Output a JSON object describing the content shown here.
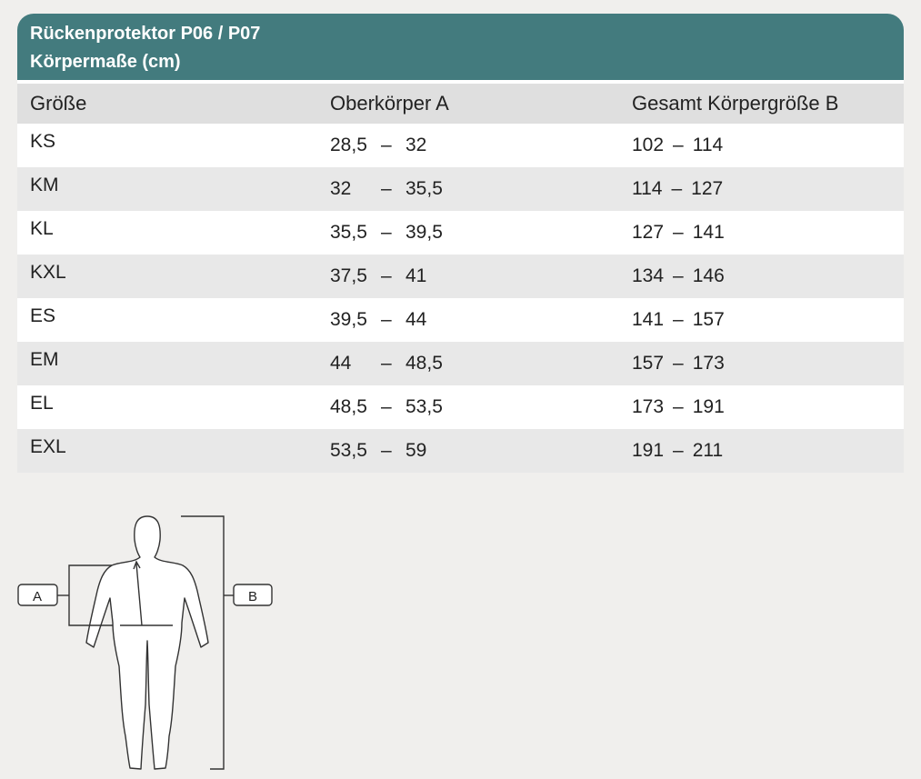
{
  "header": {
    "title": "Rückenprotektor P06 / P07",
    "subtitle": "Körpermaße (cm)"
  },
  "columns": [
    "Größe",
    "Oberkörper A",
    "Gesamt Körpergröße B"
  ],
  "rows": [
    {
      "size": "KS",
      "a_min": "28,5",
      "a_max": "32",
      "b_min": "102",
      "b_max": "114"
    },
    {
      "size": "KM",
      "a_min": "32",
      "a_max": "35,5",
      "b_min": "114",
      "b_max": "127"
    },
    {
      "size": "KL",
      "a_min": "35,5",
      "a_max": "39,5",
      "b_min": "127",
      "b_max": "141"
    },
    {
      "size": "KXL",
      "a_min": "37,5",
      "a_max": "41",
      "b_min": "134",
      "b_max": "146"
    },
    {
      "size": "ES",
      "a_min": "39,5",
      "a_max": "44",
      "b_min": "141",
      "b_max": "157"
    },
    {
      "size": "EM",
      "a_min": "44",
      "a_max": "48,5",
      "b_min": "157",
      "b_max": "173"
    },
    {
      "size": "EL",
      "a_min": "48,5",
      "a_max": "53,5",
      "b_min": "173",
      "b_max": "191"
    },
    {
      "size": "EXL",
      "a_min": "53,5",
      "a_max": "59",
      "b_min": "191",
      "b_max": "211"
    }
  ],
  "dash": "–",
  "figure": {
    "label_a": "A",
    "label_b": "B"
  },
  "colors": {
    "header_bg": "#437b7e",
    "row_shade": "#e8e8e8",
    "page_bg": "#f0efed"
  }
}
